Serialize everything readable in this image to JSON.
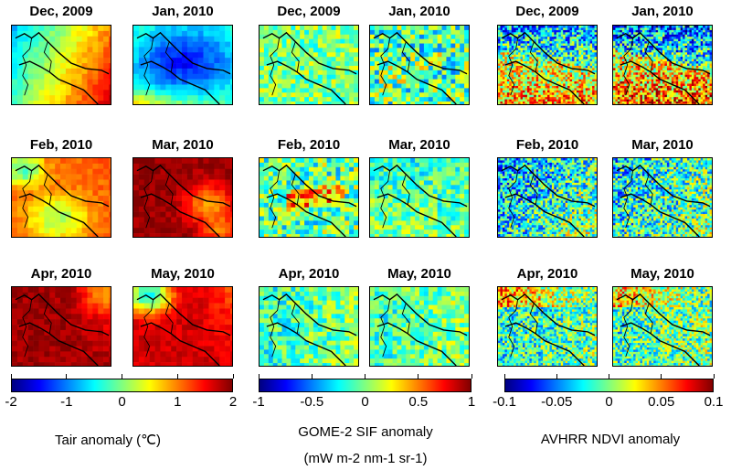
{
  "chart_data": [
    {
      "type": "heatmap",
      "variable": "Tair anomaly",
      "panels": [
        "Dec, 2009",
        "Jan, 2010",
        "Feb, 2010",
        "Mar, 2010",
        "Apr, 2010",
        "May, 2010"
      ],
      "colorbar": {
        "range": [
          -2,
          2
        ],
        "ticks": [
          "-2",
          "-1",
          "0",
          "1",
          "2"
        ],
        "label": "Tair anomaly (℃)",
        "label2": ""
      }
    },
    {
      "type": "heatmap",
      "variable": "GOME-2 SIF anomaly",
      "panels": [
        "Dec, 2009",
        "Jan, 2010",
        "Feb, 2010",
        "Mar, 2010",
        "Apr, 2010",
        "May, 2010"
      ],
      "colorbar": {
        "range": [
          -1,
          1
        ],
        "ticks": [
          "-1",
          "-0.5",
          "0",
          "0.5",
          "1"
        ],
        "label": "GOME-2 SIF anomaly",
        "label2": "(mW m-2 nm-1 sr-1)"
      }
    },
    {
      "type": "heatmap",
      "variable": "AVHRR NDVI anomaly",
      "panels": [
        "Dec, 2009",
        "Jan, 2010",
        "Feb, 2010",
        "Mar, 2010",
        "Apr, 2010",
        "May, 2010"
      ],
      "colorbar": {
        "range": [
          -0.1,
          0.1
        ],
        "ticks": [
          "-0.1",
          "-0.05",
          "0",
          "0.05",
          "0.1"
        ],
        "label": "AVHRR NDVI anomaly",
        "label2": ""
      }
    }
  ],
  "colormap": "jet"
}
